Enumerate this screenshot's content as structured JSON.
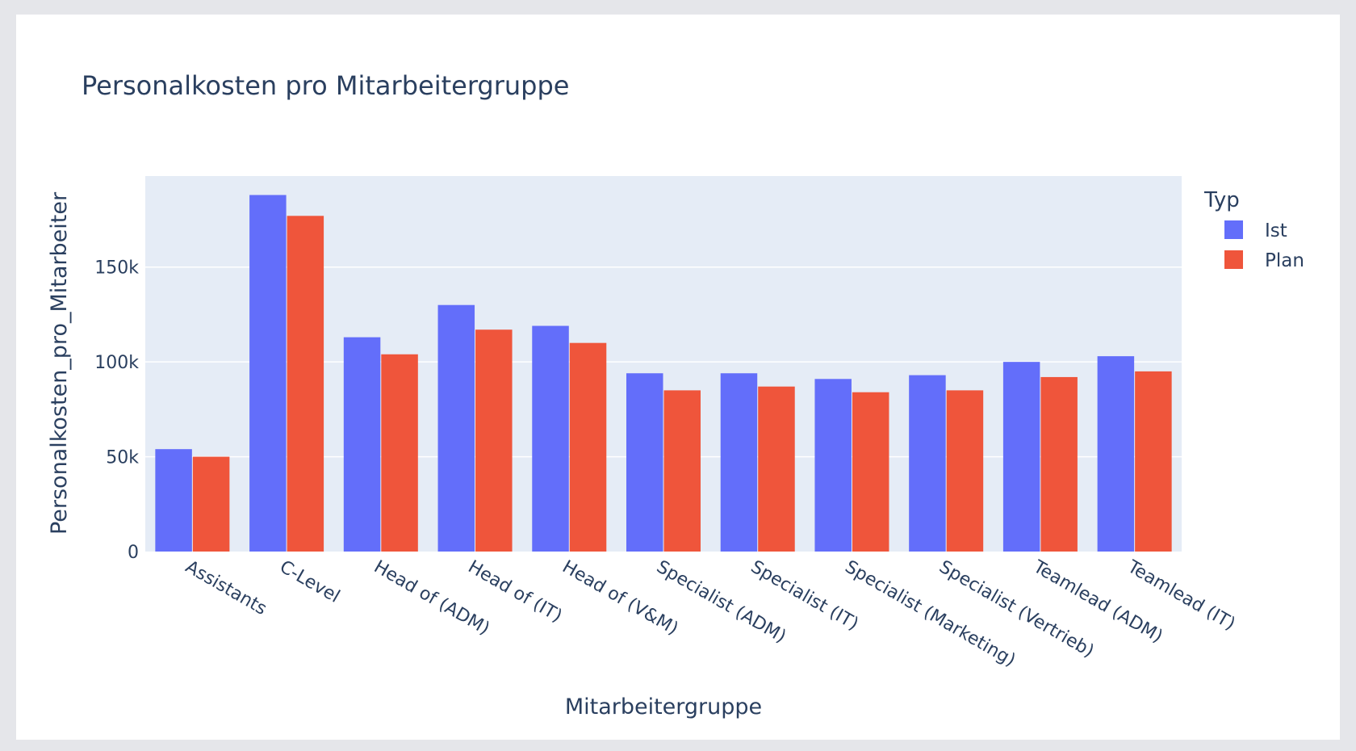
{
  "chart_data": {
    "type": "bar",
    "title": "Personalkosten pro Mitarbeitergruppe",
    "xlabel": "Mitarbeitergruppe",
    "ylabel": "Personalkosten_pro_Mitarbeiter",
    "ylim": [
      0,
      198000
    ],
    "yticks": [
      0,
      50000,
      100000,
      150000
    ],
    "ytick_labels": [
      "0",
      "50k",
      "100k",
      "150k"
    ],
    "grid": true,
    "barmode": "group",
    "categories": [
      "Assistants",
      "C-Level",
      "Head of (ADM)",
      "Head of (IT)",
      "Head of (V&M)",
      "Specialist (ADM)",
      "Specialist (IT)",
      "Specialist (Marketing)",
      "Specialist (Vertrieb)",
      "Teamlead (ADM)",
      "Teamlead (IT)"
    ],
    "legend": {
      "title": "Typ",
      "placement": "right"
    },
    "series": [
      {
        "name": "Ist",
        "color": "#636efa",
        "values": [
          54000,
          188000,
          113000,
          130000,
          119000,
          94000,
          94000,
          91000,
          93000,
          100000,
          103000
        ]
      },
      {
        "name": "Plan",
        "color": "#ef553b",
        "values": [
          50000,
          177000,
          104000,
          117000,
          110000,
          85000,
          87000,
          84000,
          85000,
          92000,
          95000
        ]
      }
    ],
    "colors": {
      "plot_background": "#e5ecf6",
      "grid": "#ffffff",
      "text": "#2a3f5f"
    }
  }
}
